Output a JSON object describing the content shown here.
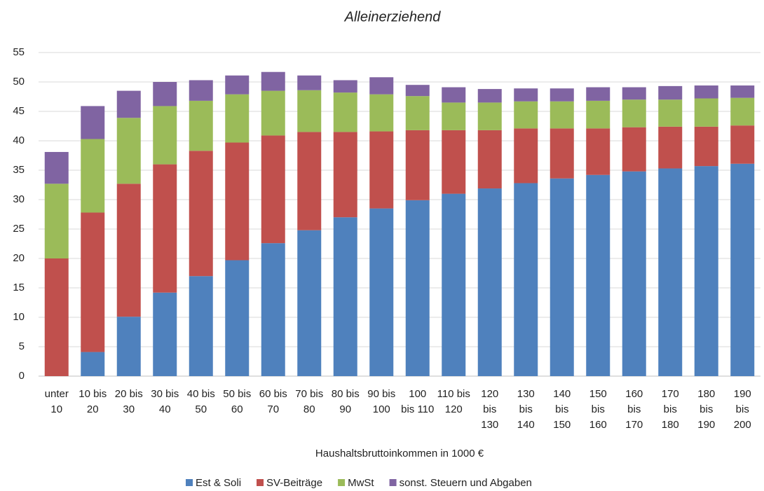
{
  "chart_data": {
    "type": "stacked_bar",
    "title": "Alleinerziehend",
    "x_label": "Haushaltsbruttoinkommen in 1000 €",
    "categories": [
      "unter 10",
      "10 bis 20",
      "20 bis 30",
      "30 bis 40",
      "40 bis 50",
      "50 bis 60",
      "60 bis 70",
      "70 bis 80",
      "80 bis 90",
      "90 bis 100",
      "100 bis 110",
      "110 bis 120",
      "120 bis 130",
      "130 bis 140",
      "140 bis 150",
      "150 bis 160",
      "160 bis 170",
      "170 bis 180",
      "180 bis 190",
      "190 bis 200"
    ],
    "series": [
      {
        "name": "Est & Soli",
        "color": "#4f81bd",
        "values": [
          0,
          4.1,
          10.1,
          14.2,
          17.0,
          19.7,
          22.6,
          24.8,
          27.0,
          28.5,
          29.9,
          31.0,
          31.9,
          32.8,
          33.6,
          34.2,
          34.8,
          35.3,
          35.7,
          36.1
        ]
      },
      {
        "name": "SV-Beiträge",
        "color": "#c0504d",
        "values": [
          20.0,
          23.7,
          22.6,
          21.8,
          21.3,
          20.0,
          18.3,
          16.7,
          14.5,
          13.1,
          11.9,
          10.8,
          9.9,
          9.3,
          8.5,
          7.9,
          7.5,
          7.1,
          6.7,
          6.5
        ]
      },
      {
        "name": "MwSt",
        "color": "#9bbb59",
        "values": [
          12.7,
          12.5,
          11.2,
          9.9,
          8.5,
          8.2,
          7.6,
          7.1,
          6.7,
          6.3,
          5.8,
          4.7,
          4.7,
          4.6,
          4.6,
          4.7,
          4.7,
          4.6,
          4.8,
          4.7
        ]
      },
      {
        "name": "sonst. Steuern und Abgaben",
        "color": "#8064a2",
        "values": [
          5.4,
          5.6,
          4.6,
          4.1,
          3.5,
          3.2,
          3.2,
          2.5,
          2.1,
          2.9,
          1.9,
          2.6,
          2.3,
          2.2,
          2.2,
          2.3,
          2.1,
          2.3,
          2.2,
          2.1
        ]
      }
    ],
    "ylim": [
      0,
      55
    ],
    "yticks": [
      0,
      5,
      10,
      15,
      20,
      25,
      30,
      35,
      40,
      45,
      50,
      55
    ],
    "grid": true
  }
}
